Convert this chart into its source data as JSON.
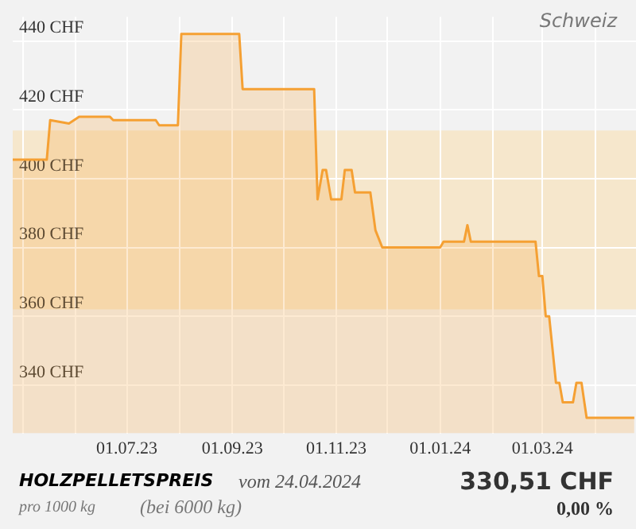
{
  "chart_data": {
    "type": "area",
    "title": "HOLZPELLETSPREIS",
    "subtitle": "vom 24.04.2024",
    "annotations": [
      "Schweiz",
      "pro 1000 kg",
      "(bei 6000 kg)",
      "330,51 CHF",
      "0,00 %"
    ],
    "x": [
      "2023-04-25",
      "2023-05-15",
      "2023-05-17",
      "2023-05-28",
      "2023-06-03",
      "2023-06-21",
      "2023-06-23",
      "2023-07-18",
      "2023-07-20",
      "2023-07-31",
      "2023-08-02",
      "2023-09-05",
      "2023-09-07",
      "2023-10-19",
      "2023-10-21",
      "2023-10-24",
      "2023-10-26",
      "2023-10-29",
      "2023-11-04",
      "2023-11-06",
      "2023-11-10",
      "2023-11-12",
      "2023-11-21",
      "2023-11-24",
      "2023-11-28",
      "2024-01-01",
      "2024-01-03",
      "2024-01-15",
      "2024-01-17",
      "2024-01-19",
      "2024-02-26",
      "2024-02-28",
      "2024-03-01",
      "2024-03-03",
      "2024-03-05",
      "2024-03-09",
      "2024-03-11",
      "2024-03-13",
      "2024-03-19",
      "2024-03-21",
      "2024-03-24",
      "2024-03-27",
      "2024-04-24"
    ],
    "series": [
      {
        "color": "#f5a033",
        "values": [
          405.5,
          405.5,
          417,
          416,
          418,
          418,
          417,
          417,
          415.5,
          415.5,
          442,
          442,
          426,
          426,
          394,
          402.5,
          402.5,
          394,
          394,
          402.5,
          402.5,
          396,
          396,
          385,
          380,
          380,
          381.7,
          381.7,
          386.5,
          381.7,
          381.7,
          371.7,
          371.7,
          360,
          360,
          340.7,
          340.7,
          335,
          335,
          340.7,
          340.7,
          330.51,
          330.51
        ]
      }
    ],
    "xlim": [
      "2023-04-25",
      "2024-04-25"
    ],
    "xticks": [
      {
        "value": "2023-05-01",
        "label": null
      },
      {
        "value": "2023-06-01",
        "label": null
      },
      {
        "value": "2023-07-01",
        "label": "01.07.23"
      },
      {
        "value": "2023-08-01",
        "label": null
      },
      {
        "value": "2023-09-01",
        "label": "01.09.23"
      },
      {
        "value": "2023-10-01",
        "label": null
      },
      {
        "value": "2023-11-01",
        "label": "01.11.23"
      },
      {
        "value": "2023-12-01",
        "label": null
      },
      {
        "value": "2024-01-01",
        "label": "01.01.24"
      },
      {
        "value": "2024-02-01",
        "label": null
      },
      {
        "value": "2024-03-01",
        "label": "01.03.24"
      },
      {
        "value": "2024-04-01",
        "label": null
      }
    ],
    "ylim": [
      326,
      447
    ],
    "yticks": [
      {
        "value": 340,
        "label": "340 CHF"
      },
      {
        "value": 360,
        "label": "360 CHF"
      },
      {
        "value": 380,
        "label": "380 CHF"
      },
      {
        "value": 400,
        "label": "400 CHF"
      },
      {
        "value": 420,
        "label": "420 CHF"
      },
      {
        "value": 440,
        "label": "440 CHF"
      }
    ],
    "bands": [
      {
        "axis": "y",
        "from": 362,
        "to": 414,
        "color": "#f6e7cc"
      }
    ],
    "grid": true,
    "legend": false
  }
}
